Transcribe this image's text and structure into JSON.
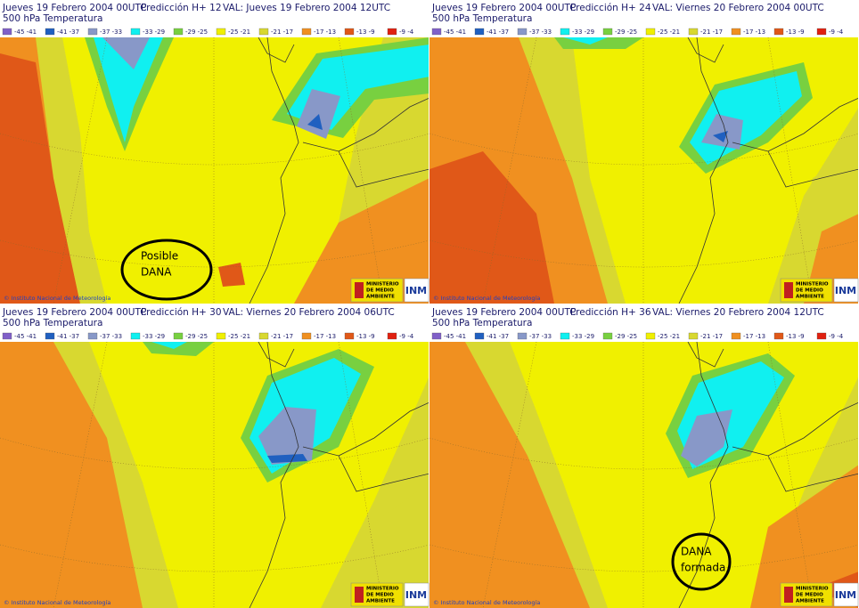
{
  "panels": [
    {
      "date": "Jueves 19 Febrero 2004 00UTC",
      "forecast": "Predicción H+ 12",
      "valid": "VAL: Jueves 19 Febrero 2004 12UTC",
      "field": "500  hPa Temperatura",
      "annotation": [
        "Posible",
        "DANA"
      ]
    },
    {
      "date": "Jueves 19 Febrero 2004 00UTC",
      "forecast": "Predicción H+ 24",
      "valid": "VAL: Viernes 20 Febrero 2004 00UTC",
      "field": "500  hPa Temperatura"
    },
    {
      "date": "Jueves 19 Febrero 2004 00UTC",
      "forecast": "Predicción H+ 30",
      "valid": "VAL: Viernes 20 Febrero 2004 06UTC",
      "field": "500  hPa Temperatura"
    },
    {
      "date": "Jueves 19 Febrero 2004 00UTC",
      "forecast": "Predicción H+ 36",
      "valid": "VAL: Viernes 20 Febrero 2004 12UTC",
      "field": "500  hPa Temperatura",
      "annotation": [
        "DANA",
        "formada"
      ]
    }
  ],
  "legend": [
    {
      "range": "-45 -41",
      "color": "#8060c8"
    },
    {
      "range": "-41 -37",
      "color": "#2060c0"
    },
    {
      "range": "-37 -33",
      "color": "#8898c8"
    },
    {
      "range": "-33 -29",
      "color": "#10f0f0"
    },
    {
      "range": "-29 -25",
      "color": "#78d040"
    },
    {
      "range": "-25 -21",
      "color": "#f0f000"
    },
    {
      "range": "-21 -17",
      "color": "#d8d830"
    },
    {
      "range": "-17 -13",
      "color": "#f09020"
    },
    {
      "range": "-13 -9",
      "color": "#e05818"
    },
    {
      "range": "-9 -4",
      "color": "#e02010"
    }
  ],
  "footer": {
    "credit": "© Instituto Nacional de Meteorología",
    "ministry": [
      "MINISTERIO",
      "DE MEDIO",
      "AMBIENTE"
    ],
    "logo": "INM"
  }
}
